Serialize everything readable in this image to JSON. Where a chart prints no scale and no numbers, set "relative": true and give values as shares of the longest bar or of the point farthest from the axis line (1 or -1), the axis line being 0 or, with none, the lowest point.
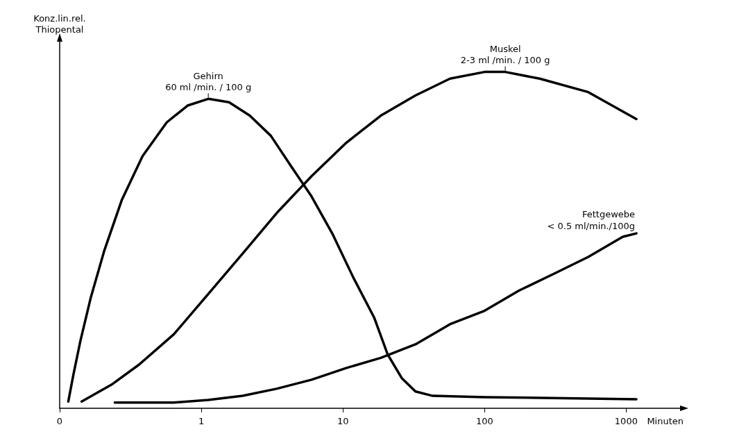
{
  "chart_data": {
    "type": "line",
    "relative": true,
    "log": "x",
    "ylabel": "Konz.lin.rel.\nThiopental",
    "xlabel": "Minuten",
    "xlim": [
      0.1,
      2400
    ],
    "xticks": [
      {
        "value": 0.1,
        "label": "0"
      },
      1,
      10,
      100,
      1000
    ],
    "grid": false,
    "legend": false,
    "marker": "none",
    "line_style": "solid",
    "series": [
      {
        "name": "Gehirn",
        "color": "#000000",
        "x": [
          0.115,
          0.125,
          0.14,
          0.166,
          0.207,
          0.275,
          0.385,
          0.57,
          0.8,
          1.12,
          1.57,
          2.2,
          3.1,
          4.3,
          6.0,
          8.4,
          11.8,
          16.6,
          20.7,
          26,
          32.5,
          43,
          100,
          540,
          1180
        ],
        "values": [
          0.02,
          0.1,
          0.2,
          0.33,
          0.47,
          0.62,
          0.75,
          0.85,
          0.9,
          0.92,
          0.91,
          0.87,
          0.81,
          0.72,
          0.63,
          0.52,
          0.39,
          0.27,
          0.16,
          0.09,
          0.05,
          0.037,
          0.033,
          0.029,
          0.027
        ]
      },
      {
        "name": "Muskel",
        "color": "#000000",
        "x": [
          0.143,
          0.232,
          0.364,
          0.64,
          1.12,
          1.96,
          3.4,
          6.0,
          10.6,
          18.5,
          32.5,
          57,
          100,
          140,
          245,
          540,
          1180
        ],
        "values": [
          0.02,
          0.07,
          0.13,
          0.22,
          0.34,
          0.46,
          0.58,
          0.69,
          0.79,
          0.87,
          0.93,
          0.98,
          1.0,
          1.0,
          0.98,
          0.94,
          0.86
        ]
      },
      {
        "name": "Fettgewebe",
        "color": "#000000",
        "x": [
          0.245,
          0.64,
          1.12,
          1.96,
          3.4,
          6.0,
          10.6,
          18.5,
          32.5,
          57,
          100,
          175,
          309,
          540,
          946,
          1180
        ],
        "values": [
          0.017,
          0.017,
          0.025,
          0.037,
          0.058,
          0.085,
          0.12,
          0.15,
          0.19,
          0.25,
          0.29,
          0.35,
          0.4,
          0.45,
          0.51,
          0.52
        ]
      }
    ],
    "annotations": [
      {
        "text": "60 ml /min. / 100 g",
        "x": 1.12,
        "y": 0.92
      },
      {
        "text": "2-3 ml /min. / 100 g",
        "x": 140,
        "y": 1.0
      },
      {
        "text": "< 0.5 ml/min./100g",
        "x": 1180,
        "y": 0.52
      }
    ]
  }
}
